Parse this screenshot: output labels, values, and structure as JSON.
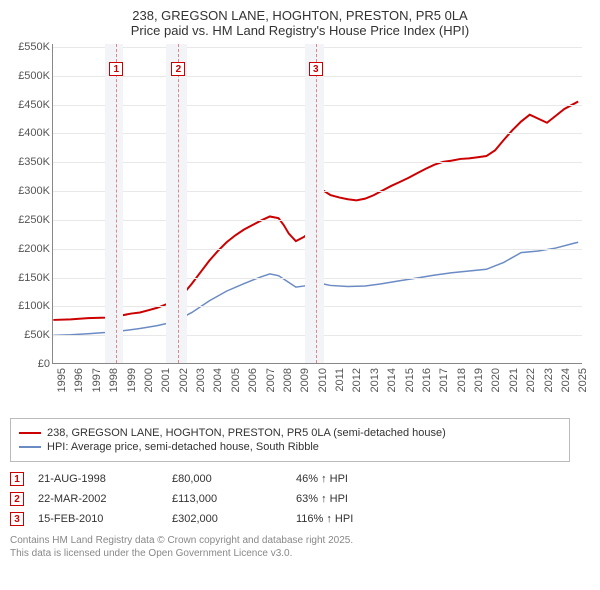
{
  "title_line1": "238, GREGSON LANE, HOGHTON, PRESTON, PR5 0LA",
  "title_line2": "Price paid vs. HM Land Registry's House Price Index (HPI)",
  "chart": {
    "type": "line",
    "x_range": [
      1995,
      2025.5
    ],
    "y_range": [
      0,
      555
    ],
    "y_ticks": [
      0,
      50,
      100,
      150,
      200,
      250,
      300,
      350,
      400,
      450,
      500,
      550
    ],
    "y_tick_labels": [
      "£0",
      "£50K",
      "£100K",
      "£150K",
      "£200K",
      "£250K",
      "£300K",
      "£350K",
      "£400K",
      "£450K",
      "£500K",
      "£550K"
    ],
    "x_ticks": [
      1995,
      1996,
      1997,
      1998,
      1999,
      2000,
      2001,
      2002,
      2003,
      2004,
      2005,
      2006,
      2007,
      2008,
      2009,
      2010,
      2011,
      2012,
      2013,
      2014,
      2015,
      2016,
      2017,
      2018,
      2019,
      2020,
      2021,
      2022,
      2023,
      2024,
      2025
    ],
    "bands": [
      {
        "from": 1998.0,
        "to": 1999.0,
        "color": "#f2f4f7"
      },
      {
        "from": 2001.5,
        "to": 2002.7,
        "color": "#f2f4f7"
      },
      {
        "from": 2009.5,
        "to": 2010.6,
        "color": "#f2f4f7"
      }
    ],
    "markers": [
      {
        "n": "1",
        "x": 1998.64,
        "line_x": 1998.64
      },
      {
        "n": "2",
        "x": 2002.22,
        "line_x": 2002.22
      },
      {
        "n": "3",
        "x": 2010.12,
        "line_x": 2010.12
      }
    ],
    "series": [
      {
        "name": "price_paid",
        "color": "#cc0000",
        "width": 2,
        "points": [
          [
            1995.0,
            75
          ],
          [
            1996.0,
            76
          ],
          [
            1997.0,
            78
          ],
          [
            1998.0,
            79
          ],
          [
            1998.64,
            80
          ],
          [
            1999.0,
            83
          ],
          [
            1999.5,
            86
          ],
          [
            2000.0,
            88
          ],
          [
            2000.5,
            92
          ],
          [
            2001.0,
            96
          ],
          [
            2001.5,
            102
          ],
          [
            2002.0,
            108
          ],
          [
            2002.22,
            113
          ],
          [
            2002.5,
            120
          ],
          [
            2003.0,
            138
          ],
          [
            2003.5,
            158
          ],
          [
            2004.0,
            178
          ],
          [
            2004.5,
            195
          ],
          [
            2005.0,
            210
          ],
          [
            2005.5,
            222
          ],
          [
            2006.0,
            232
          ],
          [
            2006.5,
            240
          ],
          [
            2007.0,
            248
          ],
          [
            2007.5,
            255
          ],
          [
            2008.0,
            252
          ],
          [
            2008.3,
            240
          ],
          [
            2008.6,
            225
          ],
          [
            2009.0,
            212
          ],
          [
            2009.5,
            220
          ],
          [
            2010.0,
            235
          ],
          [
            2010.12,
            302
          ],
          [
            2010.3,
            305
          ],
          [
            2010.7,
            298
          ],
          [
            2011.0,
            292
          ],
          [
            2011.5,
            288
          ],
          [
            2012.0,
            285
          ],
          [
            2012.5,
            283
          ],
          [
            2013.0,
            286
          ],
          [
            2013.5,
            292
          ],
          [
            2014.0,
            300
          ],
          [
            2014.5,
            308
          ],
          [
            2015.0,
            315
          ],
          [
            2015.5,
            322
          ],
          [
            2016.0,
            330
          ],
          [
            2016.5,
            338
          ],
          [
            2017.0,
            345
          ],
          [
            2017.5,
            350
          ],
          [
            2018.0,
            352
          ],
          [
            2018.5,
            355
          ],
          [
            2019.0,
            356
          ],
          [
            2019.5,
            358
          ],
          [
            2020.0,
            360
          ],
          [
            2020.5,
            370
          ],
          [
            2021.0,
            388
          ],
          [
            2021.5,
            405
          ],
          [
            2022.0,
            420
          ],
          [
            2022.5,
            432
          ],
          [
            2023.0,
            425
          ],
          [
            2023.5,
            418
          ],
          [
            2024.0,
            430
          ],
          [
            2024.5,
            442
          ],
          [
            2025.0,
            450
          ],
          [
            2025.3,
            455
          ]
        ]
      },
      {
        "name": "hpi",
        "color": "#6b8bc4",
        "width": 1.5,
        "points": [
          [
            1995.0,
            48
          ],
          [
            1996.0,
            49
          ],
          [
            1997.0,
            51
          ],
          [
            1998.0,
            53
          ],
          [
            1999.0,
            56
          ],
          [
            2000.0,
            60
          ],
          [
            2001.0,
            65
          ],
          [
            2002.0,
            72
          ],
          [
            2003.0,
            88
          ],
          [
            2004.0,
            108
          ],
          [
            2005.0,
            125
          ],
          [
            2006.0,
            138
          ],
          [
            2007.0,
            150
          ],
          [
            2007.5,
            155
          ],
          [
            2008.0,
            152
          ],
          [
            2008.5,
            142
          ],
          [
            2009.0,
            132
          ],
          [
            2009.5,
            134
          ],
          [
            2010.0,
            140
          ],
          [
            2010.5,
            138
          ],
          [
            2011.0,
            135
          ],
          [
            2012.0,
            133
          ],
          [
            2013.0,
            134
          ],
          [
            2014.0,
            138
          ],
          [
            2015.0,
            143
          ],
          [
            2016.0,
            148
          ],
          [
            2017.0,
            153
          ],
          [
            2018.0,
            157
          ],
          [
            2019.0,
            160
          ],
          [
            2020.0,
            163
          ],
          [
            2021.0,
            175
          ],
          [
            2022.0,
            192
          ],
          [
            2023.0,
            195
          ],
          [
            2024.0,
            200
          ],
          [
            2025.0,
            208
          ],
          [
            2025.3,
            210
          ]
        ]
      }
    ]
  },
  "legend": {
    "items": [
      {
        "color": "#cc0000",
        "width": 2,
        "label": "238, GREGSON LANE, HOGHTON, PRESTON, PR5 0LA (semi-detached house)"
      },
      {
        "color": "#6b8bc4",
        "width": 1.5,
        "label": "HPI: Average price, semi-detached house, South Ribble"
      }
    ]
  },
  "sales": [
    {
      "n": "1",
      "date": "21-AUG-1998",
      "price": "£80,000",
      "pct": "46% ↑ HPI"
    },
    {
      "n": "2",
      "date": "22-MAR-2002",
      "price": "£113,000",
      "pct": "63% ↑ HPI"
    },
    {
      "n": "3",
      "date": "15-FEB-2010",
      "price": "£302,000",
      "pct": "116% ↑ HPI"
    }
  ],
  "footer_line1": "Contains HM Land Registry data © Crown copyright and database right 2025.",
  "footer_line2": "This data is licensed under the Open Government Licence v3.0."
}
